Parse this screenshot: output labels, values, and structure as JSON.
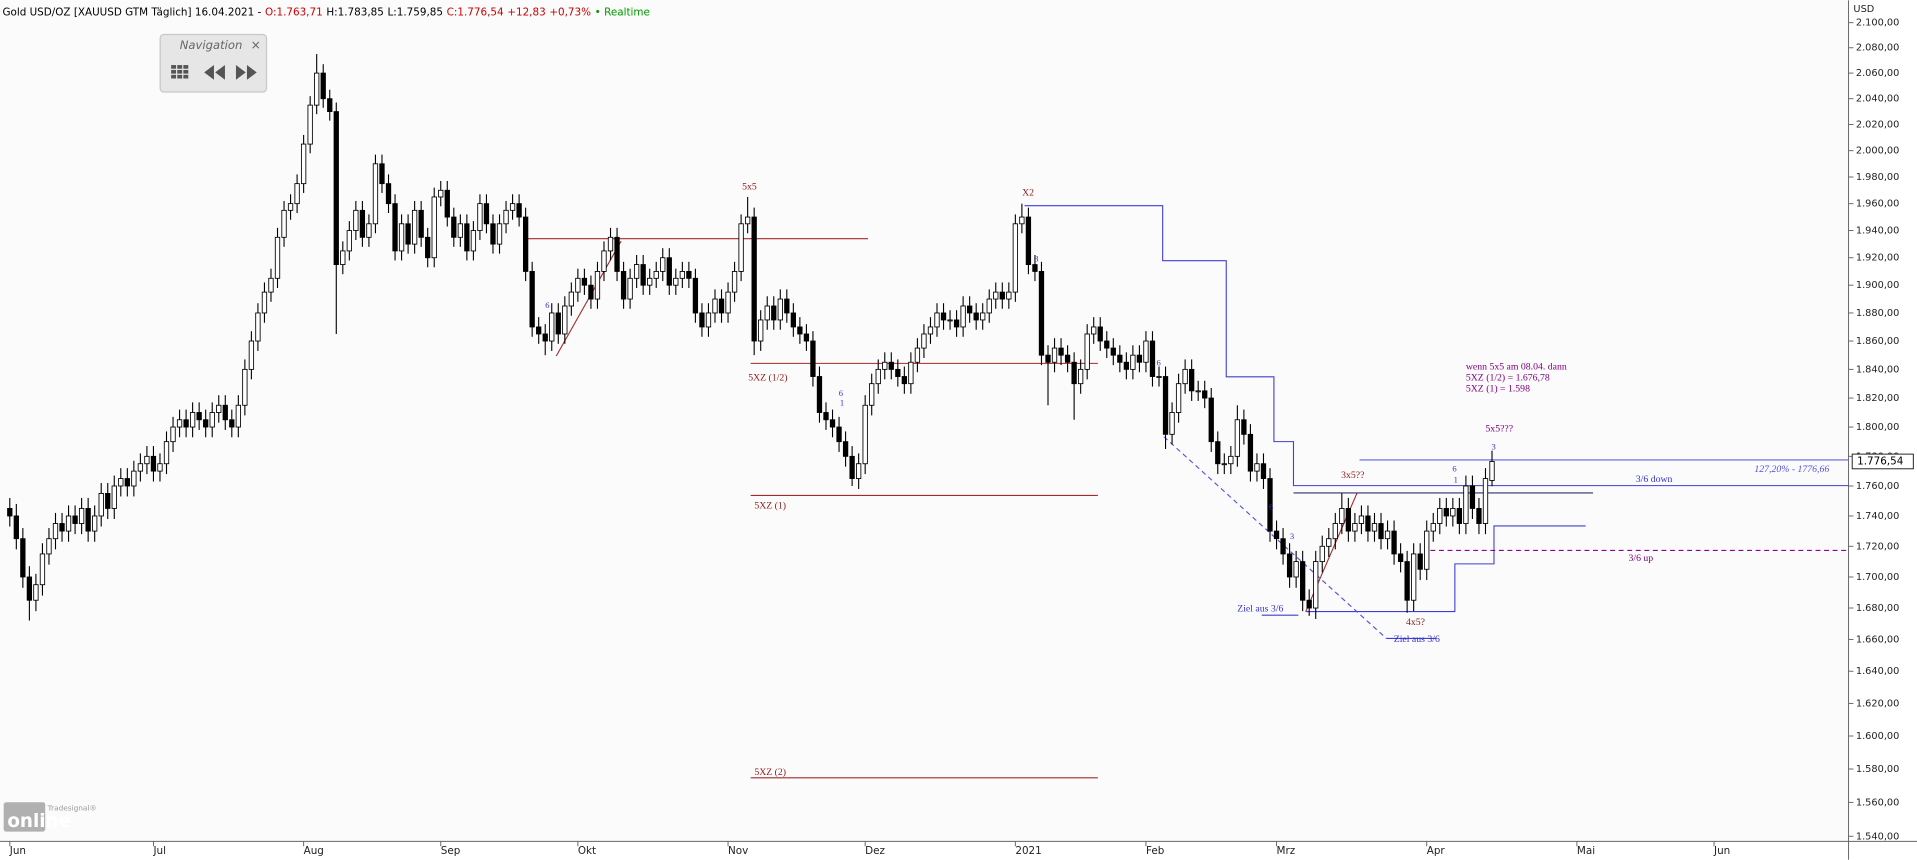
{
  "chart_data": {
    "type": "candlestick",
    "title": "Gold USD/OZ [XAUUSD GTM Täglich] 16.04.2021 -",
    "quote": [
      {
        "text": "O:1.763,71",
        "color": "#cc0000"
      },
      {
        "text": "H:1.783,85",
        "color": "#000000"
      },
      {
        "text": "L:1.759,85",
        "color": "#000000"
      },
      {
        "text": "C:1.776,54",
        "color": "#cc0000"
      },
      {
        "text": "+12,83",
        "color": "#cc0000"
      },
      {
        "text": "+0,73%",
        "color": "#cc0000"
      },
      {
        "text": "• Realtime",
        "color": "#009900"
      }
    ],
    "y_unit": "USD",
    "log_scale": true,
    "grid": false,
    "up_color": "#ffffff",
    "down_color": "#000000",
    "outline_color": "#000000",
    "price_tag": {
      "value": 1776.54,
      "label": "1.776,54"
    },
    "navigation": {
      "title": "Navigation",
      "close": "×"
    },
    "logo": {
      "brand": "Tradesignal®",
      "name": "online"
    },
    "annotations": [
      "5x5",
      "X2",
      "5XZ (1/2)",
      "5XZ (1)",
      "5XZ (2)",
      "3x5??",
      "4x5?",
      "5x5???",
      "Ziel aus 3/6",
      "Ziel aus 3/6",
      "3/6 down",
      "3/6 up",
      "127,20% - 1776,66",
      "wenn 5x5 am 08.04. dann",
      "5XZ (1/2) = 1.676,78",
      "5XZ (1) = 1.598",
      "6",
      "6",
      "1",
      "3",
      "6",
      "6",
      "3",
      "6",
      "1",
      "3"
    ],
    "xlim": [
      -1.5,
      281.6
    ],
    "ylim": [
      1537,
      2118
    ],
    "xticks": [
      {
        "value": 0,
        "label": "Jun"
      },
      {
        "value": 22,
        "label": "Jul"
      },
      {
        "value": 45,
        "label": "Aug"
      },
      {
        "value": 66,
        "label": "Sep"
      },
      {
        "value": 87,
        "label": "Okt"
      },
      {
        "value": 110,
        "label": "Nov"
      },
      {
        "value": 131,
        "label": "Dez"
      },
      {
        "value": 154,
        "label": "2021"
      },
      {
        "value": 174,
        "label": "Feb"
      },
      {
        "value": 194,
        "label": "Mrz"
      },
      {
        "value": 217,
        "label": "Apr"
      },
      {
        "value": 240,
        "label": "Mai"
      },
      {
        "value": 261,
        "label": "Jun"
      }
    ],
    "yticks": [
      {
        "value": 1540,
        "label": "1.540,00"
      },
      {
        "value": 1560,
        "label": "1.560,00"
      },
      {
        "value": 1580,
        "label": "1.580,00"
      },
      {
        "value": 1600,
        "label": "1.600,00"
      },
      {
        "value": 1620,
        "label": "1.620,00"
      },
      {
        "value": 1640,
        "label": "1.640,00"
      },
      {
        "value": 1660,
        "label": "1.660,00"
      },
      {
        "value": 1680,
        "label": "1.680,00"
      },
      {
        "value": 1700,
        "label": "1.700,00"
      },
      {
        "value": 1720,
        "label": "1.720,00"
      },
      {
        "value": 1740,
        "label": "1.740,00"
      },
      {
        "value": 1760,
        "label": "1.760,00"
      },
      {
        "value": 1780,
        "label": "1.780,00"
      },
      {
        "value": 1800,
        "label": "1.800,00"
      },
      {
        "value": 1820,
        "label": "1.820,00"
      },
      {
        "value": 1840,
        "label": "1.840,00"
      },
      {
        "value": 1860,
        "label": "1.860,00"
      },
      {
        "value": 1880,
        "label": "1.880,00"
      },
      {
        "value": 1900,
        "label": "1.900,00"
      },
      {
        "value": 1920,
        "label": "1.920,00"
      },
      {
        "value": 1940,
        "label": "1.940,00"
      },
      {
        "value": 1960,
        "label": "1.960,00"
      },
      {
        "value": 1980,
        "label": "1.980,00"
      },
      {
        "value": 2000,
        "label": "2.000,00"
      },
      {
        "value": 2020,
        "label": "2.020,00"
      },
      {
        "value": 2040,
        "label": "2.040,00"
      },
      {
        "value": 2060,
        "label": "2.060,00"
      },
      {
        "value": 2080,
        "label": "2.080,00"
      },
      {
        "value": 2100,
        "label": "2.100,00"
      }
    ],
    "x": [
      0,
      1,
      2,
      3,
      4,
      5,
      6,
      7,
      8,
      9,
      10,
      11,
      12,
      13,
      14,
      15,
      16,
      17,
      18,
      19,
      20,
      21,
      22,
      23,
      24,
      25,
      26,
      27,
      28,
      29,
      30,
      31,
      32,
      33,
      34,
      35,
      36,
      37,
      38,
      39,
      40,
      41,
      42,
      43,
      44,
      45,
      46,
      47,
      48,
      49,
      50,
      51,
      52,
      53,
      54,
      55,
      56,
      57,
      58,
      59,
      60,
      61,
      62,
      63,
      64,
      65,
      66,
      67,
      68,
      69,
      70,
      71,
      72,
      73,
      74,
      75,
      76,
      77,
      78,
      79,
      80,
      81,
      82,
      83,
      84,
      85,
      86,
      87,
      88,
      89,
      90,
      91,
      92,
      93,
      94,
      95,
      96,
      97,
      98,
      99,
      100,
      101,
      102,
      103,
      104,
      105,
      106,
      107,
      108,
      109,
      110,
      111,
      112,
      113,
      114,
      115,
      116,
      117,
      118,
      119,
      120,
      121,
      122,
      123,
      124,
      125,
      126,
      127,
      128,
      129,
      130,
      131,
      132,
      133,
      134,
      135,
      136,
      137,
      138,
      139,
      140,
      141,
      142,
      143,
      144,
      145,
      146,
      147,
      148,
      149,
      150,
      151,
      152,
      153,
      154,
      155,
      156,
      157,
      158,
      159,
      160,
      161,
      162,
      163,
      164,
      165,
      166,
      167,
      168,
      169,
      170,
      171,
      172,
      173,
      174,
      175,
      176,
      177,
      178,
      179,
      180,
      181,
      182,
      183,
      184,
      185,
      186,
      187,
      188,
      189,
      190,
      191,
      192,
      193,
      194,
      195,
      196,
      197,
      198,
      199,
      200,
      201,
      202,
      203,
      204,
      205,
      206,
      207,
      208,
      209,
      210,
      211,
      212,
      213,
      214,
      215,
      216,
      217,
      218,
      219,
      220,
      221,
      222,
      223,
      224,
      225,
      226,
      227
    ],
    "open": [
      1745,
      1740,
      1725,
      1700,
      1685,
      1695,
      1715,
      1725,
      1735,
      1730,
      1740,
      1735,
      1745,
      1730,
      1740,
      1755,
      1745,
      1760,
      1765,
      1760,
      1770,
      1775,
      1780,
      1770,
      1775,
      1790,
      1800,
      1805,
      1800,
      1810,
      1805,
      1800,
      1810,
      1815,
      1805,
      1800,
      1815,
      1840,
      1860,
      1880,
      1895,
      1905,
      1935,
      1955,
      1960,
      1975,
      2005,
      2035,
      2060,
      2040,
      2030,
      1915,
      1925,
      1940,
      1955,
      1935,
      1945,
      1990,
      1975,
      1960,
      1925,
      1945,
      1930,
      1955,
      1935,
      1920,
      1965,
      1970,
      1950,
      1935,
      1945,
      1925,
      1940,
      1960,
      1945,
      1930,
      1945,
      1955,
      1960,
      1950,
      1910,
      1870,
      1865,
      1860,
      1880,
      1865,
      1885,
      1895,
      1905,
      1900,
      1890,
      1910,
      1925,
      1935,
      1910,
      1890,
      1905,
      1915,
      1900,
      1905,
      1910,
      1920,
      1900,
      1905,
      1910,
      1905,
      1880,
      1870,
      1880,
      1890,
      1880,
      1895,
      1910,
      1945,
      1950,
      1860,
      1875,
      1885,
      1875,
      1890,
      1880,
      1870,
      1865,
      1860,
      1835,
      1810,
      1805,
      1800,
      1790,
      1780,
      1765,
      1775,
      1815,
      1830,
      1840,
      1845,
      1840,
      1835,
      1830,
      1845,
      1855,
      1865,
      1870,
      1880,
      1875,
      1875,
      1870,
      1885,
      1880,
      1875,
      1880,
      1890,
      1895,
      1890,
      1895,
      1945,
      1950,
      1915,
      1910,
      1850,
      1845,
      1855,
      1850,
      1845,
      1830,
      1840,
      1865,
      1870,
      1860,
      1855,
      1850,
      1845,
      1840,
      1850,
      1845,
      1860,
      1835,
      1835,
      1795,
      1810,
      1830,
      1840,
      1825,
      1825,
      1820,
      1790,
      1775,
      1775,
      1780,
      1805,
      1795,
      1770,
      1775,
      1765,
      1730,
      1725,
      1715,
      1700,
      1710,
      1685,
      1680,
      1710,
      1720,
      1725,
      1735,
      1745,
      1730,
      1735,
      1740,
      1730,
      1735,
      1725,
      1730,
      1715,
      1710,
      1685,
      1715,
      1705,
      1730,
      1735,
      1745,
      1740,
      1745,
      1735,
      1760,
      1745,
      1735,
      1763.71
    ],
    "high": [
      1752,
      1748,
      1732,
      1707,
      1702,
      1722,
      1732,
      1742,
      1742,
      1747,
      1747,
      1752,
      1752,
      1747,
      1762,
      1762,
      1767,
      1772,
      1772,
      1777,
      1782,
      1787,
      1787,
      1782,
      1797,
      1807,
      1812,
      1812,
      1817,
      1817,
      1812,
      1817,
      1822,
      1822,
      1812,
      1822,
      1847,
      1867,
      1887,
      1902,
      1912,
      1942,
      1962,
      1967,
      1982,
      2012,
      2042,
      2075,
      2067,
      2047,
      2037,
      1932,
      1947,
      1962,
      1962,
      1952,
      1997,
      1997,
      1982,
      1967,
      1952,
      1952,
      1962,
      1962,
      1942,
      1972,
      1977,
      1977,
      1957,
      1952,
      1952,
      1947,
      1967,
      1967,
      1952,
      1952,
      1962,
      1967,
      1967,
      1957,
      1917,
      1877,
      1872,
      1887,
      1887,
      1892,
      1902,
      1912,
      1912,
      1907,
      1917,
      1932,
      1942,
      1942,
      1917,
      1912,
      1922,
      1922,
      1912,
      1917,
      1927,
      1927,
      1912,
      1917,
      1917,
      1912,
      1887,
      1887,
      1897,
      1897,
      1902,
      1917,
      1952,
      1965,
      1957,
      1882,
      1892,
      1892,
      1897,
      1897,
      1887,
      1877,
      1872,
      1867,
      1842,
      1817,
      1812,
      1807,
      1797,
      1787,
      1782,
      1822,
      1837,
      1847,
      1852,
      1852,
      1847,
      1842,
      1852,
      1862,
      1872,
      1877,
      1887,
      1887,
      1882,
      1882,
      1892,
      1892,
      1887,
      1887,
      1897,
      1902,
      1902,
      1902,
      1952,
      1960,
      1957,
      1922,
      1917,
      1857,
      1862,
      1862,
      1857,
      1852,
      1847,
      1872,
      1877,
      1877,
      1867,
      1862,
      1857,
      1852,
      1857,
      1857,
      1867,
      1867,
      1842,
      1842,
      1817,
      1837,
      1847,
      1847,
      1832,
      1832,
      1827,
      1797,
      1782,
      1787,
      1815,
      1812,
      1802,
      1782,
      1782,
      1772,
      1737,
      1732,
      1722,
      1717,
      1717,
      1692,
      1717,
      1727,
      1732,
      1742,
      1755,
      1752,
      1742,
      1747,
      1747,
      1742,
      1742,
      1737,
      1737,
      1722,
      1717,
      1722,
      1722,
      1737,
      1742,
      1752,
      1752,
      1752,
      1752,
      1767,
      1767,
      1752,
      1772,
      1783.85
    ],
    "low": [
      1733,
      1718,
      1693,
      1672,
      1678,
      1688,
      1708,
      1718,
      1723,
      1723,
      1728,
      1728,
      1723,
      1723,
      1733,
      1738,
      1738,
      1753,
      1753,
      1753,
      1763,
      1768,
      1763,
      1763,
      1768,
      1783,
      1793,
      1793,
      1793,
      1798,
      1793,
      1793,
      1803,
      1798,
      1793,
      1793,
      1808,
      1833,
      1853,
      1873,
      1888,
      1898,
      1928,
      1948,
      1953,
      1968,
      1998,
      2028,
      2033,
      2023,
      1865,
      1908,
      1918,
      1933,
      1928,
      1928,
      1938,
      1968,
      1953,
      1918,
      1918,
      1923,
      1923,
      1928,
      1913,
      1913,
      1958,
      1943,
      1928,
      1928,
      1918,
      1918,
      1933,
      1938,
      1923,
      1923,
      1938,
      1948,
      1943,
      1903,
      1863,
      1858,
      1850,
      1853,
      1858,
      1858,
      1878,
      1888,
      1893,
      1883,
      1883,
      1903,
      1918,
      1903,
      1883,
      1883,
      1898,
      1893,
      1893,
      1898,
      1903,
      1893,
      1893,
      1898,
      1898,
      1873,
      1863,
      1863,
      1873,
      1873,
      1873,
      1888,
      1903,
      1938,
      1850,
      1853,
      1868,
      1868,
      1868,
      1873,
      1863,
      1858,
      1853,
      1828,
      1803,
      1798,
      1793,
      1783,
      1773,
      1760,
      1758,
      1768,
      1808,
      1823,
      1833,
      1833,
      1828,
      1823,
      1823,
      1838,
      1848,
      1858,
      1863,
      1868,
      1868,
      1863,
      1863,
      1873,
      1868,
      1868,
      1873,
      1883,
      1883,
      1883,
      1888,
      1938,
      1908,
      1903,
      1843,
      1815,
      1838,
      1843,
      1838,
      1805,
      1823,
      1833,
      1858,
      1853,
      1848,
      1843,
      1838,
      1833,
      1833,
      1838,
      1838,
      1828,
      1828,
      1785,
      1788,
      1803,
      1823,
      1818,
      1818,
      1813,
      1783,
      1768,
      1768,
      1768,
      1773,
      1788,
      1763,
      1763,
      1758,
      1723,
      1718,
      1708,
      1693,
      1693,
      1678,
      1675,
      1673,
      1703,
      1713,
      1718,
      1728,
      1723,
      1723,
      1728,
      1723,
      1723,
      1718,
      1718,
      1708,
      1703,
      1677,
      1678,
      1698,
      1698,
      1723,
      1728,
      1733,
      1733,
      1728,
      1728,
      1738,
      1728,
      1728,
      1759.85
    ],
    "close": [
      1740,
      1725,
      1700,
      1685,
      1695,
      1715,
      1725,
      1735,
      1730,
      1740,
      1735,
      1745,
      1730,
      1740,
      1755,
      1745,
      1760,
      1765,
      1760,
      1770,
      1775,
      1780,
      1770,
      1775,
      1790,
      1800,
      1805,
      1800,
      1810,
      1805,
      1800,
      1810,
      1815,
      1805,
      1800,
      1815,
      1840,
      1860,
      1880,
      1895,
      1905,
      1935,
      1955,
      1960,
      1975,
      2005,
      2035,
      2060,
      2040,
      2030,
      1915,
      1925,
      1940,
      1955,
      1935,
      1945,
      1990,
      1975,
      1960,
      1925,
      1945,
      1930,
      1955,
      1935,
      1920,
      1965,
      1970,
      1950,
      1935,
      1945,
      1925,
      1940,
      1960,
      1945,
      1930,
      1945,
      1955,
      1960,
      1950,
      1910,
      1870,
      1865,
      1860,
      1880,
      1865,
      1885,
      1895,
      1905,
      1900,
      1890,
      1910,
      1925,
      1935,
      1910,
      1890,
      1905,
      1915,
      1900,
      1905,
      1910,
      1920,
      1900,
      1905,
      1910,
      1905,
      1880,
      1870,
      1880,
      1890,
      1880,
      1895,
      1910,
      1945,
      1950,
      1860,
      1875,
      1885,
      1875,
      1890,
      1880,
      1870,
      1865,
      1860,
      1835,
      1810,
      1805,
      1800,
      1790,
      1780,
      1765,
      1775,
      1815,
      1830,
      1840,
      1845,
      1840,
      1835,
      1830,
      1845,
      1855,
      1865,
      1870,
      1880,
      1875,
      1875,
      1870,
      1885,
      1880,
      1875,
      1880,
      1890,
      1895,
      1890,
      1895,
      1945,
      1950,
      1915,
      1910,
      1850,
      1845,
      1855,
      1850,
      1845,
      1830,
      1840,
      1865,
      1870,
      1860,
      1855,
      1850,
      1845,
      1840,
      1850,
      1845,
      1860,
      1835,
      1835,
      1795,
      1810,
      1830,
      1840,
      1825,
      1825,
      1820,
      1790,
      1775,
      1775,
      1780,
      1805,
      1795,
      1770,
      1775,
      1765,
      1730,
      1725,
      1715,
      1700,
      1710,
      1685,
      1680,
      1710,
      1720,
      1725,
      1735,
      1745,
      1730,
      1735,
      1740,
      1730,
      1735,
      1725,
      1730,
      1715,
      1710,
      1685,
      1715,
      1705,
      1730,
      1735,
      1745,
      1740,
      1745,
      1735,
      1760,
      1745,
      1735,
      1765,
      1776.54
    ]
  }
}
